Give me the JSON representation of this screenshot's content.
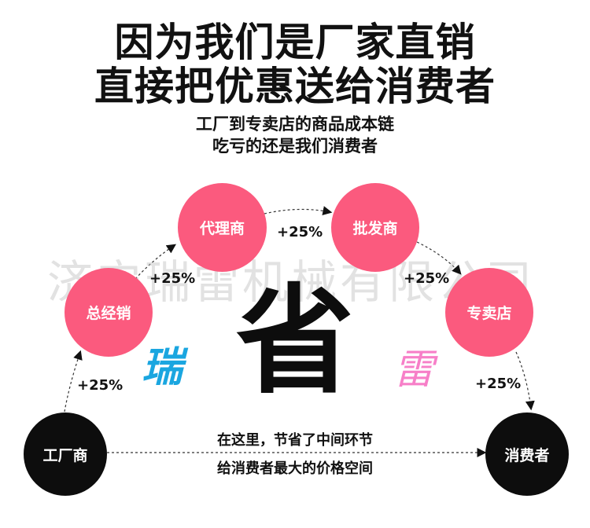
{
  "headline": {
    "line1": "因为我们是厂家直销",
    "line2": "直接把优惠送给消费者"
  },
  "subtitle": {
    "line1": "工厂到专卖店的商品成本链",
    "line2": "吃亏的还是我们消费者"
  },
  "watermark": "济宁瑞雷机械有限公司",
  "nodes": {
    "factory": "工厂商",
    "general_distributor": "总经销",
    "agent": "代理商",
    "wholesaler": "批发商",
    "store": "专卖店",
    "consumer": "消费者"
  },
  "markups": {
    "m1": "+25%",
    "m2": "+25%",
    "m3": "+25%",
    "m4": "+25%",
    "m5": "+25%"
  },
  "center_char": "省",
  "brand_left": "瑞",
  "brand_right": "雷",
  "bottom_text": {
    "line1": "在这里，节省了中间环节",
    "line2": "给消费者最大的价格空间"
  },
  "colors": {
    "node_pink": "#fb5a7e",
    "node_dark": "#0d0d0d",
    "brand_left": "#1aa6e0",
    "brand_right": "#f77fc8"
  }
}
